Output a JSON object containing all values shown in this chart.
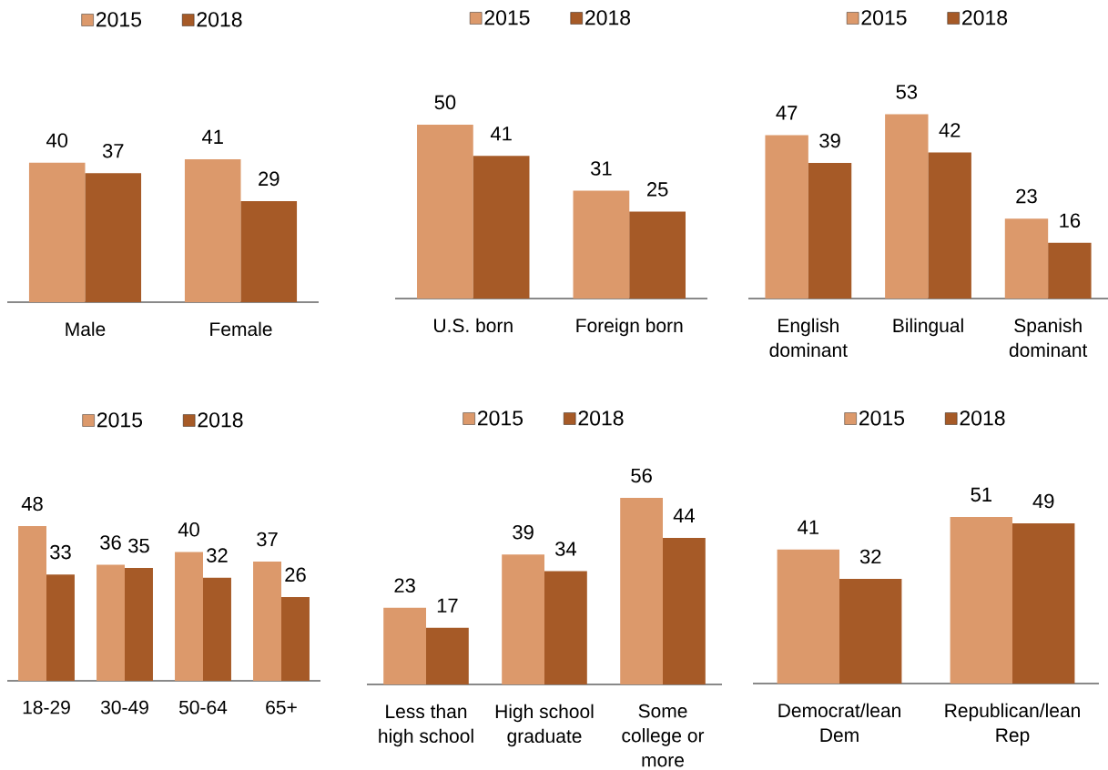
{
  "chart_data": [
    {
      "type": "bar",
      "categories": [
        "Male",
        "Female"
      ],
      "series": [
        {
          "name": "2015",
          "color": "#dc996b",
          "values": [
            40,
            41
          ]
        },
        {
          "name": "2018",
          "color": "#a65a27",
          "values": [
            37,
            29
          ]
        }
      ],
      "data_labels": true,
      "legend": "top"
    },
    {
      "type": "bar",
      "categories": [
        "U.S. born",
        "Foreign born"
      ],
      "series": [
        {
          "name": "2015",
          "color": "#dc996b",
          "values": [
            50,
            31
          ]
        },
        {
          "name": "2018",
          "color": "#a65a27",
          "values": [
            41,
            25
          ]
        }
      ],
      "data_labels": true,
      "legend": "top"
    },
    {
      "type": "bar",
      "categories": [
        "English dominant",
        "Bilingual",
        "Spanish dominant"
      ],
      "series": [
        {
          "name": "2015",
          "color": "#dc996b",
          "values": [
            47,
            53,
            23
          ]
        },
        {
          "name": "2018",
          "color": "#a65a27",
          "values": [
            39,
            42,
            16
          ]
        }
      ],
      "data_labels": true,
      "legend": "top"
    },
    {
      "type": "bar",
      "categories": [
        "18-29",
        "30-49",
        "50-64",
        "65+"
      ],
      "series": [
        {
          "name": "2015",
          "color": "#dc996b",
          "values": [
            48,
            36,
            40,
            37
          ]
        },
        {
          "name": "2018",
          "color": "#a65a27",
          "values": [
            33,
            35,
            32,
            26
          ]
        }
      ],
      "data_labels": true,
      "legend": "top"
    },
    {
      "type": "bar",
      "categories": [
        "Less than high school",
        "High school graduate",
        "Some college or more"
      ],
      "series": [
        {
          "name": "2015",
          "color": "#dc996b",
          "values": [
            23,
            39,
            56
          ]
        },
        {
          "name": "2018",
          "color": "#a65a27",
          "values": [
            17,
            34,
            44
          ]
        }
      ],
      "data_labels": true,
      "legend": "top"
    },
    {
      "type": "bar",
      "categories": [
        "Democrat/lean Dem",
        "Republican/lean Rep"
      ],
      "series": [
        {
          "name": "2015",
          "color": "#dc996b",
          "values": [
            41,
            51
          ]
        },
        {
          "name": "2018",
          "color": "#a65a27",
          "values": [
            32,
            49
          ]
        }
      ],
      "data_labels": true,
      "legend": "top"
    }
  ]
}
